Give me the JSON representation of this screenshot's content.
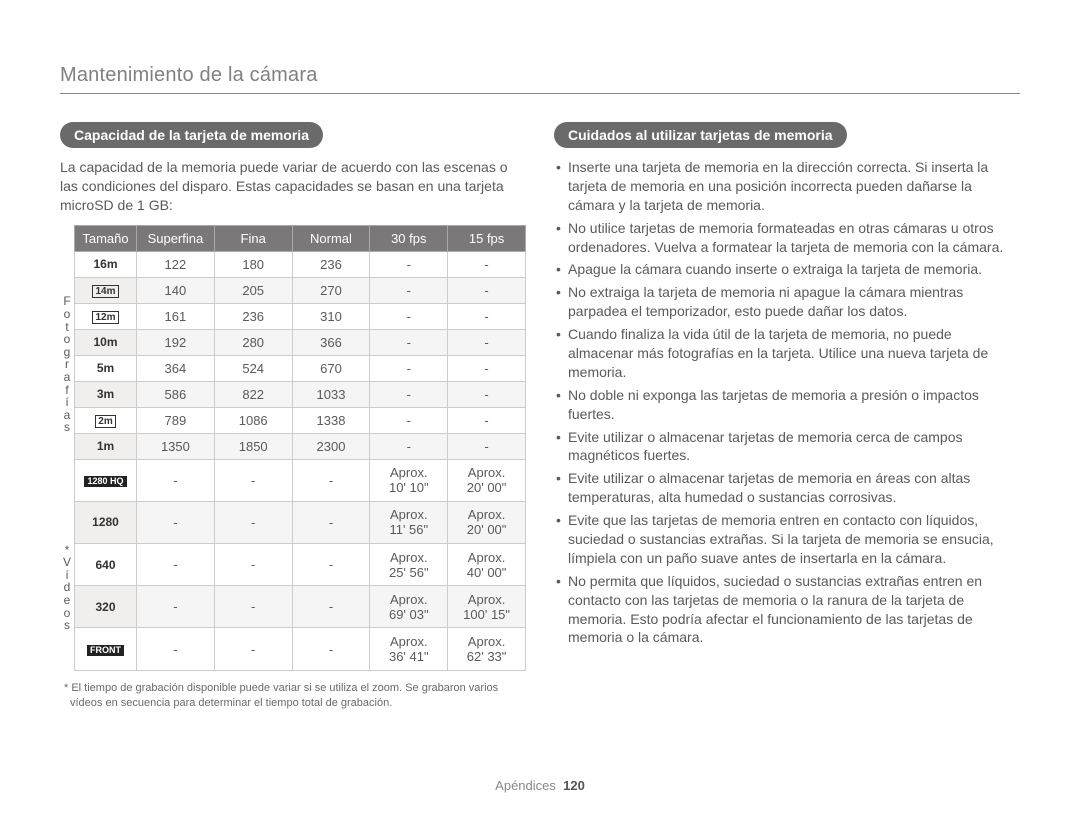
{
  "page_title": "Mantenimiento de la cámara",
  "footer_label": "Apéndices",
  "footer_page": "120",
  "left": {
    "heading": "Capacidad de la tarjeta de memoria",
    "intro": "La capacidad de la memoria puede variar de acuerdo con las escenas o las condiciones del disparo. Estas capacidades se basan en una tarjeta microSD de 1 GB:",
    "headers": [
      "Tamaño",
      "Superfina",
      "Fina",
      "Normal",
      "30 fps",
      "15 fps"
    ],
    "side_label_photos": "Fotografías",
    "side_label_videos": "* Vídeos",
    "photo_rows": [
      {
        "size": "16m",
        "sf": "122",
        "fn": "180",
        "nm": "236",
        "f30": "-",
        "f15": "-"
      },
      {
        "size": "14m_wide",
        "icon": true,
        "sf": "140",
        "fn": "205",
        "nm": "270",
        "f30": "-",
        "f15": "-"
      },
      {
        "size": "12m_wide",
        "icon": true,
        "sf": "161",
        "fn": "236",
        "nm": "310",
        "f30": "-",
        "f15": "-"
      },
      {
        "size": "10m",
        "sf": "192",
        "fn": "280",
        "nm": "366",
        "f30": "-",
        "f15": "-"
      },
      {
        "size": "5m",
        "sf": "364",
        "fn": "524",
        "nm": "670",
        "f30": "-",
        "f15": "-"
      },
      {
        "size": "3m",
        "sf": "586",
        "fn": "822",
        "nm": "1033",
        "f30": "-",
        "f15": "-"
      },
      {
        "size": "2m_wide",
        "icon": true,
        "sf": "789",
        "fn": "1086",
        "nm": "1338",
        "f30": "-",
        "f15": "-"
      },
      {
        "size": "1m",
        "sf": "1350",
        "fn": "1850",
        "nm": "2300",
        "f30": "-",
        "f15": "-"
      }
    ],
    "video_rows": [
      {
        "size": "1280_HQ",
        "dark": true,
        "sf": "-",
        "fn": "-",
        "nm": "-",
        "f30": "Aprox. 10' 10\"",
        "f15": "Aprox. 20' 00\""
      },
      {
        "size": "1280",
        "sf": "-",
        "fn": "-",
        "nm": "-",
        "f30": "Aprox. 11' 56\"",
        "f15": "Aprox. 20' 00\""
      },
      {
        "size": "640",
        "sf": "-",
        "fn": "-",
        "nm": "-",
        "f30": "Aprox. 25' 56\"",
        "f15": "Aprox. 40' 00\""
      },
      {
        "size": "320",
        "sf": "-",
        "fn": "-",
        "nm": "-",
        "f30": "Aprox. 69' 03\"",
        "f15": "Aprox. 100' 15\""
      },
      {
        "size": "front",
        "dark": true,
        "sf": "-",
        "fn": "-",
        "nm": "-",
        "f30": "Aprox. 36' 41\"",
        "f15": "Aprox. 62' 33\""
      }
    ],
    "footnote": "* El tiempo de grabación disponible puede variar si se utiliza el zoom. Se grabaron varios vídeos en secuencia para determinar el tiempo total de grabación."
  },
  "right": {
    "heading": "Cuidados al utilizar tarjetas de memoria",
    "items": [
      "Inserte una tarjeta de memoria en la dirección correcta. Si inserta la tarjeta de memoria en una posición incorrecta pueden dañarse la cámara y la tarjeta de memoria.",
      "No utilice tarjetas de memoria formateadas en otras cámaras u otros ordenadores. Vuelva a formatear la tarjeta de memoria con la cámara.",
      "Apague la cámara cuando inserte o extraiga la tarjeta de memoria.",
      "No extraiga la tarjeta de memoria ni apague la cámara mientras parpadea el temporizador, esto puede dañar los datos.",
      "Cuando finaliza la vida útil de la tarjeta de memoria, no puede almacenar más fotografías en la tarjeta. Utilice una nueva tarjeta de memoria.",
      "No doble ni exponga las tarjetas de memoria a presión o impactos fuertes.",
      "Evite utilizar o almacenar tarjetas de memoria cerca de campos magnéticos fuertes.",
      "Evite utilizar o almacenar tarjetas de memoria en áreas con altas temperaturas, alta humedad o sustancias corrosivas.",
      "Evite que las tarjetas de memoria entren en contacto con líquidos, suciedad o sustancias extrañas. Si la tarjeta de memoria se ensucia, límpiela con un paño suave antes de insertarla en la cámara.",
      "No permita que líquidos, suciedad o sustancias extrañas entren en contacto con las tarjetas de memoria o la ranura de la tarjeta de memoria. Esto podría afectar el funcionamiento de las tarjetas de memoria o la cámara."
    ]
  },
  "size_display": {
    "16m": "16m",
    "14m_wide": "14m",
    "12m_wide": "12m",
    "10m": "10m",
    "5m": "5m",
    "3m": "3m",
    "2m_wide": "2m",
    "1m": "1m",
    "1280_HQ": "1280 HQ",
    "1280": "1280",
    "640": "640",
    "320": "320",
    "front": "FRONT"
  }
}
